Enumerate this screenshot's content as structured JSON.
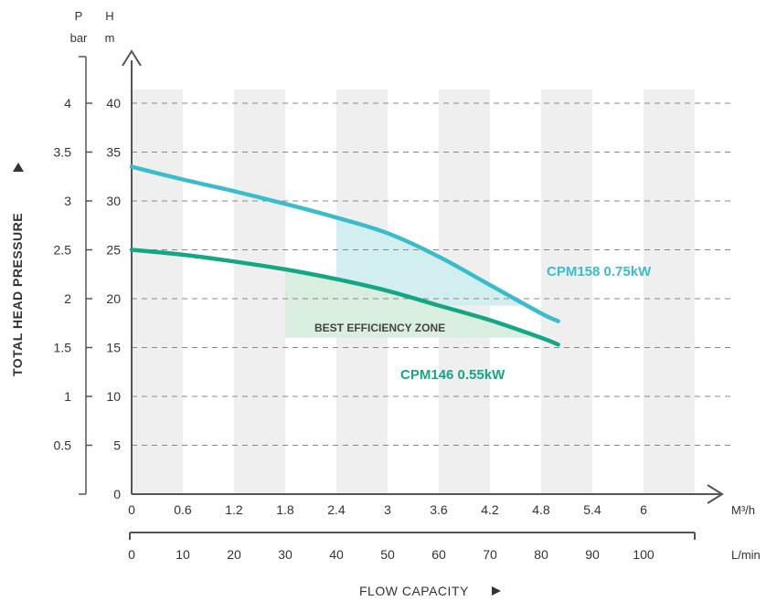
{
  "chart_data": {
    "type": "line",
    "title": "",
    "ylabel": "TOTAL HEAD PRESSURE",
    "xlabel": "FLOW CAPACITY",
    "y_units": {
      "pressure": [
        "P",
        "bar"
      ],
      "head": [
        "H",
        "m"
      ]
    },
    "x_units": {
      "flow_m3h": "M³/h",
      "flow_lmin": "L/min"
    },
    "ylim": [
      0,
      40
    ],
    "xlim": [
      0,
      7.2
    ],
    "y_ticks_head": [
      "0",
      "5",
      "10",
      "15",
      "20",
      "25",
      "30",
      "35",
      "40"
    ],
    "y_ticks_head_values": [
      0,
      5,
      10,
      15,
      20,
      25,
      30,
      35,
      40
    ],
    "y_ticks_bar": [
      "0.5",
      "1",
      "1.5",
      "2",
      "2.5",
      "3",
      "3.5",
      "4"
    ],
    "y_ticks_bar_values": [
      5,
      10,
      15,
      20,
      25,
      30,
      35,
      40
    ],
    "x_ticks_m3h": [
      "0",
      "0.6",
      "1.2",
      "1.8",
      "2.4",
      "3",
      "3.6",
      "4.2",
      "4.8",
      "5.4",
      "6"
    ],
    "x_ticks_m3h_values": [
      0,
      0.6,
      1.2,
      1.8,
      2.4,
      3,
      3.6,
      4.2,
      4.8,
      5.4,
      6
    ],
    "x_ticks_lmin": [
      "0",
      "10",
      "20",
      "30",
      "40",
      "50",
      "60",
      "70",
      "80",
      "90",
      "100"
    ],
    "x_ticks_lmin_values": [
      0,
      10,
      20,
      30,
      40,
      50,
      60,
      70,
      80,
      90,
      100
    ],
    "grid": true,
    "series": [
      {
        "name": "CPM158 0.75kW",
        "color": "#3bbccc",
        "points": [
          [
            0,
            33.5
          ],
          [
            0.6,
            32.2
          ],
          [
            1.2,
            31.0
          ],
          [
            1.8,
            29.7
          ],
          [
            2.4,
            28.3
          ],
          [
            3.0,
            26.7
          ],
          [
            3.6,
            24.3
          ],
          [
            4.2,
            21.4
          ],
          [
            4.8,
            18.5
          ],
          [
            5.0,
            17.7
          ]
        ]
      },
      {
        "name": "CPM146 0.55kW",
        "color": "#13a784",
        "points": [
          [
            0,
            25.0
          ],
          [
            0.6,
            24.5
          ],
          [
            1.2,
            23.8
          ],
          [
            1.8,
            23.0
          ],
          [
            2.4,
            22.0
          ],
          [
            3.0,
            20.8
          ],
          [
            3.6,
            19.3
          ],
          [
            4.2,
            17.8
          ],
          [
            4.8,
            16.0
          ],
          [
            5.0,
            15.3
          ]
        ]
      }
    ],
    "zones": [
      {
        "label": "",
        "color": "#d3eeee",
        "x_range": [
          2.4,
          4.8
        ],
        "floor": 19.3,
        "follows": "CPM158 0.75kW"
      },
      {
        "label": "BEST EFFICIENCY ZONE",
        "color": "#d9eedf",
        "x_range": [
          1.8,
          4.8
        ],
        "floor": 16.0,
        "follows": "CPM146 0.55kW"
      }
    ],
    "x_bands": [
      [
        0,
        0.6
      ],
      [
        1.2,
        1.8
      ],
      [
        2.4,
        3.0
      ],
      [
        3.6,
        4.2
      ],
      [
        4.8,
        5.4
      ],
      [
        6.0,
        6.6
      ]
    ],
    "colors": {
      "band": "#efefef",
      "axis": "#555555",
      "grid": "#888888"
    }
  }
}
